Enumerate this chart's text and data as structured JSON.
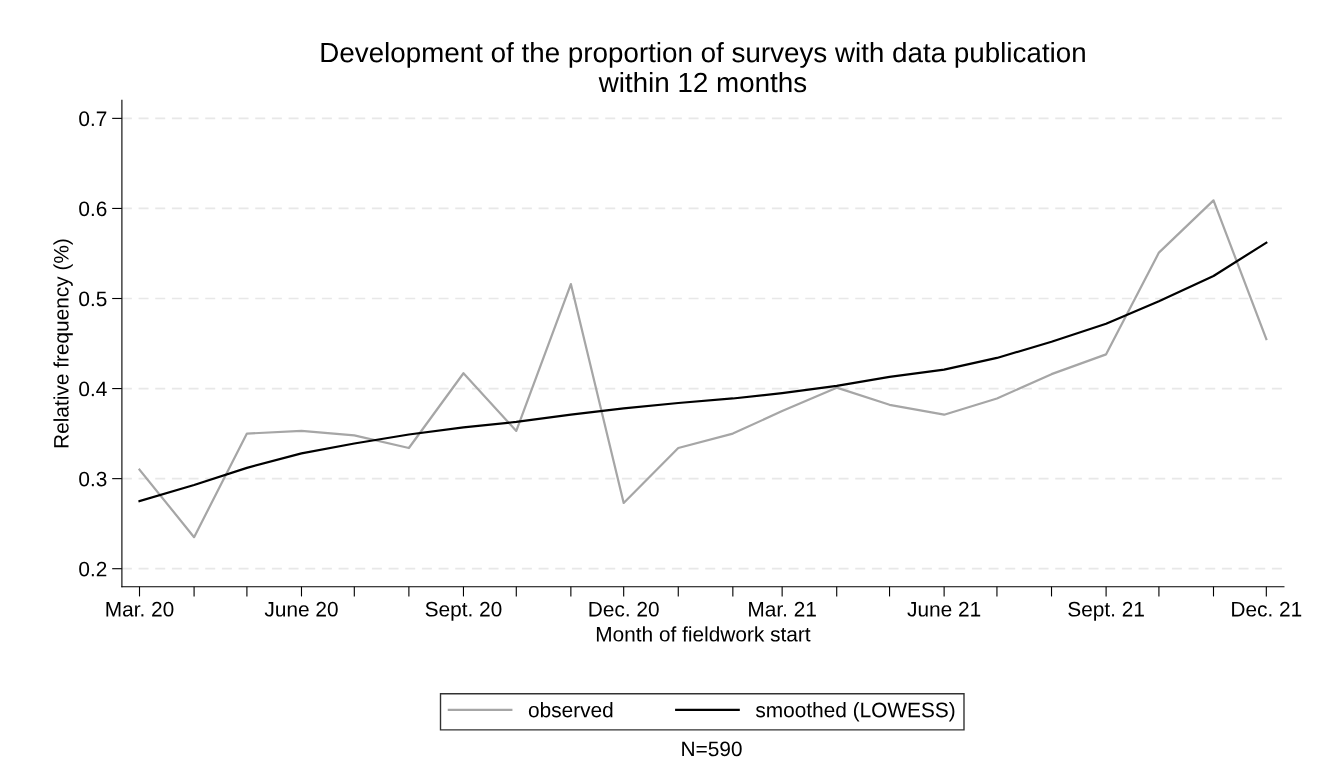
{
  "chart_data": {
    "type": "line",
    "title": "Development of the proportion of surveys with data publication\nwithin 12 months",
    "xlabel": "Month of fieldwork start",
    "ylabel": "Relative frequency (%)",
    "annotations": [
      "N=590"
    ],
    "x": [
      "2020-03-01",
      "2020-04-01",
      "2020-05-01",
      "2020-06-01",
      "2020-07-01",
      "2020-08-01",
      "2020-09-01",
      "2020-10-01",
      "2020-11-01",
      "2020-12-01",
      "2021-01-01",
      "2021-02-01",
      "2021-03-01",
      "2021-04-01",
      "2021-05-01",
      "2021-06-01",
      "2021-07-01",
      "2021-08-01",
      "2021-09-01",
      "2021-10-01",
      "2021-11-01",
      "2021-12-01"
    ],
    "series": [
      {
        "name": "observed",
        "color": "#a6a6a6",
        "values": [
          0.31,
          0.235,
          0.35,
          0.353,
          0.348,
          0.334,
          0.417,
          0.353,
          0.516,
          0.273,
          0.334,
          0.35,
          0.375,
          0.401,
          0.382,
          0.371,
          0.389,
          0.416,
          0.438,
          0.551,
          0.609,
          0.455
        ]
      },
      {
        "name": "smoothed (LOWESS)",
        "color": "#000000",
        "values": [
          0.275,
          0.293,
          0.312,
          0.328,
          0.339,
          0.349,
          0.357,
          0.363,
          0.371,
          0.378,
          0.384,
          0.389,
          0.395,
          0.403,
          0.413,
          0.421,
          0.434,
          0.452,
          0.472,
          0.497,
          0.525,
          0.562
        ]
      }
    ],
    "xlim": [
      "2020-02-20",
      "2021-12-11"
    ],
    "xticks": [
      {
        "value": "2020-03-01",
        "label": "Mar. 20"
      },
      {
        "value": "2020-04-01",
        "label": null
      },
      {
        "value": "2020-05-01",
        "label": null
      },
      {
        "value": "2020-06-01",
        "label": "June 20"
      },
      {
        "value": "2020-07-01",
        "label": null
      },
      {
        "value": "2020-08-01",
        "label": null
      },
      {
        "value": "2020-09-01",
        "label": "Sept. 20"
      },
      {
        "value": "2020-10-01",
        "label": null
      },
      {
        "value": "2020-11-01",
        "label": null
      },
      {
        "value": "2020-12-01",
        "label": "Dec. 20"
      },
      {
        "value": "2021-01-01",
        "label": null
      },
      {
        "value": "2021-02-01",
        "label": null
      },
      {
        "value": "2021-03-01",
        "label": "Mar. 21"
      },
      {
        "value": "2021-04-01",
        "label": null
      },
      {
        "value": "2021-05-01",
        "label": null
      },
      {
        "value": "2021-06-01",
        "label": "June 21"
      },
      {
        "value": "2021-07-01",
        "label": null
      },
      {
        "value": "2021-08-01",
        "label": null
      },
      {
        "value": "2021-09-01",
        "label": "Sept. 21"
      },
      {
        "value": "2021-10-01",
        "label": null
      },
      {
        "value": "2021-11-01",
        "label": null
      },
      {
        "value": "2021-12-01",
        "label": "Dec. 21"
      }
    ],
    "ylim": [
      0.18,
      0.72
    ],
    "yticks": [
      0.2,
      0.3,
      0.4,
      0.5,
      0.6,
      0.7
    ],
    "grid": "y",
    "legend": "bottom",
    "marker": "none",
    "line_style": "solid"
  }
}
